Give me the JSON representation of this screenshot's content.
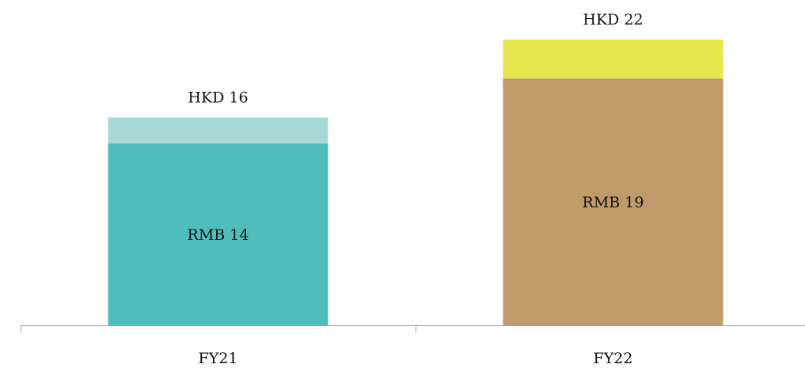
{
  "chart_data": {
    "type": "bar",
    "stacked": true,
    "categories": [
      "FY21",
      "FY22"
    ],
    "ylim": [
      0,
      22
    ],
    "grid": false,
    "legend": "none",
    "bars": [
      {
        "category": "FY21",
        "total": 16,
        "total_label": "HKD 16",
        "segments": [
          {
            "value": 14,
            "label": "RMB 14",
            "color": "#4fbdbb"
          },
          {
            "value": 2,
            "label": "",
            "color": "#a6d8d5"
          }
        ]
      },
      {
        "category": "FY22",
        "total": 22,
        "total_label": "HKD 22",
        "segments": [
          {
            "value": 19,
            "label": "RMB 19",
            "color": "#bf9a6a"
          },
          {
            "value": 3,
            "label": "",
            "color": "#e5e64c"
          }
        ]
      }
    ],
    "axis_color": "#a0a0a0"
  }
}
